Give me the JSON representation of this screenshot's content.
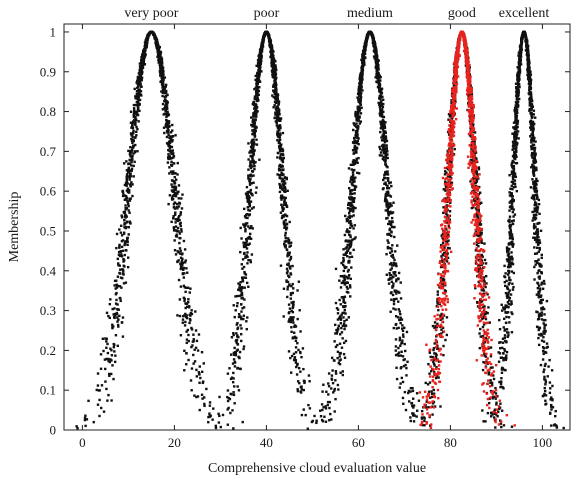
{
  "chart_data": {
    "type": "scatter",
    "title": "",
    "xlabel": "Comprehensive cloud evaluation value",
    "ylabel": "Membership",
    "xlim": [
      -4,
      106
    ],
    "ylim": [
      0,
      1.02
    ],
    "x_ticks": [
      0,
      20,
      40,
      60,
      80,
      100
    ],
    "x_tick_labels": [
      "0",
      "20",
      "40",
      "60",
      "80",
      "100"
    ],
    "y_ticks": [
      0,
      0.1,
      0.2,
      0.3,
      0.4,
      0.5,
      0.6,
      0.7,
      0.8,
      0.9,
      1
    ],
    "y_tick_labels": [
      "0",
      "0.1",
      "0.2",
      "0.3",
      "0.4",
      "0.5",
      "0.6",
      "0.7",
      "0.8",
      "0.9",
      "1"
    ],
    "grid": false,
    "clouds": [
      {
        "label": "very poor",
        "Ex": 15,
        "En": 5.0,
        "He": 0.55,
        "color": "#111111"
      },
      {
        "label": "poor",
        "Ex": 40,
        "En": 3.6,
        "He": 0.45,
        "color": "#111111"
      },
      {
        "label": "medium",
        "Ex": 62.5,
        "En": 3.8,
        "He": 0.45,
        "color": "#111111"
      },
      {
        "label": "good",
        "Ex": 82.5,
        "En": 3.0,
        "He": 0.4,
        "color": "#111111"
      },
      {
        "label": "excellent",
        "Ex": 96,
        "En": 2.4,
        "He": 0.35,
        "color": "#111111"
      }
    ],
    "overlay": {
      "Ex": 82.5,
      "En": 2.9,
      "He": 0.45,
      "color": "#e8231e"
    }
  }
}
